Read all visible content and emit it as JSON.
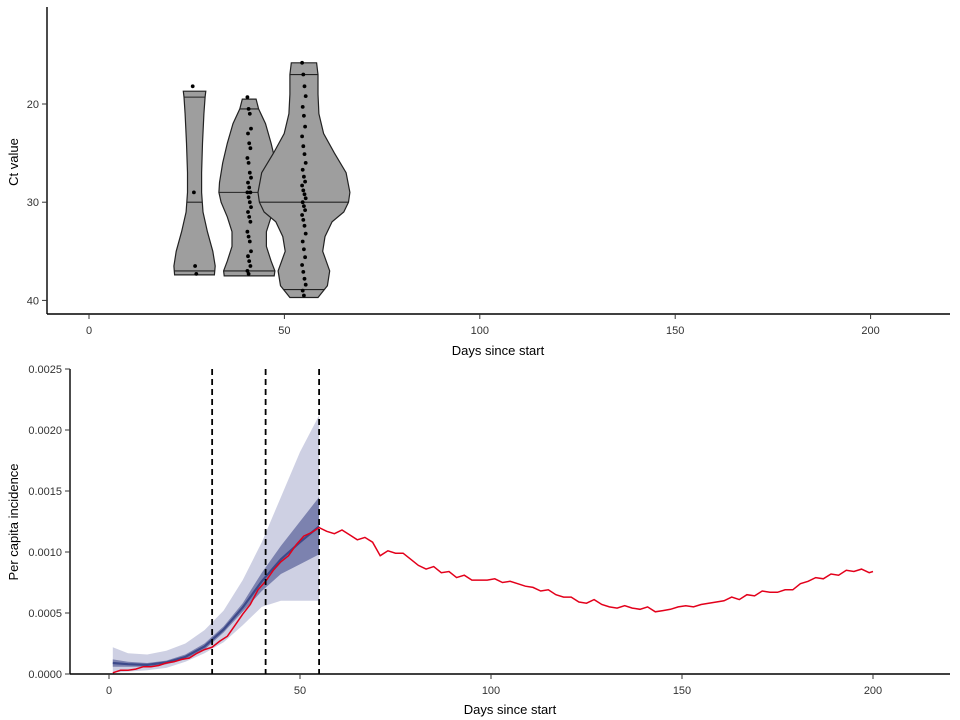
{
  "chart_data": [
    {
      "type": "violin",
      "xlabel": "Days since start",
      "ylabel": "Ct value",
      "xlim": [
        -10,
        220
      ],
      "ylim": [
        41.3,
        10
      ],
      "y_reversed": true,
      "x_ticks": [
        0,
        50,
        100,
        150,
        200
      ],
      "x_tick_labels": [
        "0",
        "50",
        "100",
        "150",
        "200"
      ],
      "y_ticks": [
        20,
        30,
        40
      ],
      "y_tick_labels": [
        "20",
        "30",
        "40"
      ],
      "fill_color": "#9e9e9e",
      "violins": [
        {
          "day": 27,
          "half_width": 6,
          "median": 30,
          "min": 18.7,
          "max": 37.4,
          "quantile_lines": [
            19.3,
            30,
            37.0
          ],
          "profile": [
            [
              18.7,
              0.48
            ],
            [
              19.3,
              0.45
            ],
            [
              21,
              0.4
            ],
            [
              24,
              0.34
            ],
            [
              27,
              0.3
            ],
            [
              29,
              0.3
            ],
            [
              31,
              0.36
            ],
            [
              33,
              0.55
            ],
            [
              35,
              0.78
            ],
            [
              36.5,
              0.88
            ],
            [
              37.4,
              0.85
            ]
          ],
          "points": [
            18.2,
            29.0,
            36.5,
            37.3
          ]
        },
        {
          "day": 41,
          "half_width": 8,
          "median": 29,
          "min": 19.5,
          "max": 37.5,
          "quantile_lines": [
            20.5,
            29,
            37.0
          ],
          "profile": [
            [
              19.5,
              0.22
            ],
            [
              20.5,
              0.3
            ],
            [
              22,
              0.52
            ],
            [
              24,
              0.7
            ],
            [
              26,
              0.85
            ],
            [
              28,
              0.95
            ],
            [
              29,
              0.97
            ],
            [
              30,
              0.9
            ],
            [
              31.5,
              0.7
            ],
            [
              33,
              0.55
            ],
            [
              34.5,
              0.55
            ],
            [
              36,
              0.7
            ],
            [
              37,
              0.82
            ],
            [
              37.5,
              0.8
            ]
          ],
          "points": [
            19.3,
            20.5,
            21.0,
            22.5,
            23.0,
            24.0,
            24.5,
            25.5,
            26.0,
            27.0,
            27.5,
            28.0,
            28.5,
            29.0,
            29.0,
            29.5,
            30.0,
            30.5,
            31.0,
            31.5,
            32.0,
            33.0,
            33.5,
            34.0,
            35.0,
            35.5,
            36.0,
            36.5,
            37.0,
            37.3
          ]
        },
        {
          "day": 55,
          "half_width": 12,
          "median": 30,
          "min": 15.8,
          "max": 39.7,
          "quantile_lines": [
            17.0,
            30,
            38.9
          ],
          "profile": [
            [
              15.8,
              0.27
            ],
            [
              17,
              0.3
            ],
            [
              19,
              0.3
            ],
            [
              21,
              0.32
            ],
            [
              23,
              0.42
            ],
            [
              25,
              0.65
            ],
            [
              27,
              0.9
            ],
            [
              29,
              0.98
            ],
            [
              30,
              0.95
            ],
            [
              31,
              0.85
            ],
            [
              32,
              0.6
            ],
            [
              33.5,
              0.45
            ],
            [
              35,
              0.4
            ],
            [
              37,
              0.55
            ],
            [
              38.5,
              0.5
            ],
            [
              39.7,
              0.3
            ]
          ],
          "points": [
            15.8,
            17.0,
            18.2,
            19.2,
            20.3,
            21.2,
            22.3,
            23.3,
            24.3,
            25.1,
            26.0,
            26.7,
            27.4,
            27.9,
            28.3,
            28.8,
            29.2,
            29.6,
            30.0,
            30.4,
            30.8,
            31.3,
            31.8,
            32.4,
            33.2,
            34.0,
            34.8,
            35.6,
            36.4,
            37.1,
            37.8,
            38.4,
            39.0,
            39.5
          ]
        }
      ]
    },
    {
      "type": "line",
      "xlabel": "Days since start",
      "ylabel": "Per capita incidence",
      "xlim": [
        -10,
        220
      ],
      "ylim": [
        0,
        0.0025
      ],
      "x_ticks": [
        0,
        50,
        100,
        150,
        200
      ],
      "x_tick_labels": [
        "0",
        "50",
        "100",
        "150",
        "200"
      ],
      "y_ticks": [
        0,
        0.0005,
        0.001,
        0.0015,
        0.002,
        0.0025
      ],
      "y_tick_labels": [
        "0.0000",
        "0.0005",
        "0.0010",
        "0.0015",
        "0.0020",
        "0.0025"
      ],
      "vlines": [
        27,
        41,
        55
      ],
      "colors": {
        "observed": "#e3001b",
        "median": "#3d4a8a",
        "band_inner": "#6d74a6",
        "band_outer": "#c9cbe0",
        "vline": "#000000"
      },
      "band_x": [
        1,
        5,
        10,
        15,
        20,
        25,
        30,
        35,
        40,
        45,
        50,
        55
      ],
      "band_outer_low": [
        1e-05,
        2e-05,
        3e-05,
        5e-05,
        0.0001,
        0.00017,
        0.00026,
        0.0004,
        0.00055,
        0.0006,
        0.0006,
        0.0006
      ],
      "band_outer_high": [
        0.00022,
        0.00017,
        0.00016,
        0.00019,
        0.00025,
        0.00036,
        0.00052,
        0.00077,
        0.00108,
        0.00145,
        0.00182,
        0.00212
      ],
      "band_inner_low": [
        6e-05,
        6e-05,
        6e-05,
        8e-05,
        0.00012,
        0.0002,
        0.00034,
        0.00051,
        0.00068,
        0.00082,
        0.0009,
        0.00098
      ],
      "band_inner_high": [
        0.00012,
        0.0001,
        9e-05,
        0.00011,
        0.00016,
        0.00025,
        0.00039,
        0.00058,
        0.00083,
        0.00105,
        0.00125,
        0.00145
      ],
      "median_line": [
        9e-05,
        8e-05,
        7.5e-05,
        9.5e-05,
        0.00014,
        0.000225,
        0.000365,
        0.000545,
        0.00076,
        0.00094,
        0.00108,
        0.00121
      ],
      "observed_x": [
        1,
        3,
        5,
        7,
        9,
        11,
        13,
        15,
        17,
        19,
        21,
        23,
        25,
        27,
        29,
        31,
        33,
        35,
        37,
        39,
        41,
        43,
        45,
        47,
        49,
        51,
        53,
        55,
        57,
        59,
        61,
        63,
        65,
        67,
        69,
        71,
        73,
        75,
        77,
        79,
        81,
        83,
        85,
        87,
        89,
        91,
        93,
        95,
        97,
        99,
        101,
        103,
        105,
        107,
        109,
        111,
        113,
        115,
        117,
        119,
        121,
        123,
        125,
        127,
        129,
        131,
        133,
        135,
        137,
        139,
        141,
        143,
        145,
        147,
        149,
        151,
        153,
        155,
        157,
        159,
        161,
        163,
        165,
        167,
        169,
        171,
        173,
        175,
        177,
        179,
        181,
        183,
        185,
        187,
        189,
        191,
        193,
        195,
        197,
        199,
        200
      ],
      "observed_y": [
        1e-05,
        3e-05,
        3e-05,
        4e-05,
        6e-05,
        6e-05,
        7e-05,
        9e-05,
        0.0001,
        0.00012,
        0.00013,
        0.00017,
        0.0002,
        0.00022,
        0.00027,
        0.00031,
        0.0004,
        0.00049,
        0.00057,
        0.00069,
        0.00076,
        0.00085,
        0.00092,
        0.00097,
        0.00106,
        0.00113,
        0.00116,
        0.0012,
        0.00117,
        0.00115,
        0.00118,
        0.00114,
        0.0011,
        0.00112,
        0.00108,
        0.00097,
        0.00101,
        0.00099,
        0.00099,
        0.00094,
        0.00089,
        0.00086,
        0.00088,
        0.00083,
        0.00084,
        0.00079,
        0.00081,
        0.00077,
        0.00077,
        0.00077,
        0.00078,
        0.00075,
        0.00076,
        0.00074,
        0.00072,
        0.00071,
        0.00068,
        0.00069,
        0.00065,
        0.00063,
        0.00063,
        0.00059,
        0.00058,
        0.00061,
        0.00057,
        0.00055,
        0.00054,
        0.00056,
        0.00054,
        0.00053,
        0.00055,
        0.00051,
        0.00052,
        0.00053,
        0.00055,
        0.00056,
        0.00055,
        0.00057,
        0.00058,
        0.00059,
        0.0006,
        0.00063,
        0.00061,
        0.00065,
        0.00064,
        0.00068,
        0.00067,
        0.00067,
        0.00069,
        0.00069,
        0.00074,
        0.00076,
        0.00079,
        0.00078,
        0.00082,
        0.00081,
        0.00085,
        0.00084,
        0.00086,
        0.00083,
        0.00084
      ]
    }
  ]
}
